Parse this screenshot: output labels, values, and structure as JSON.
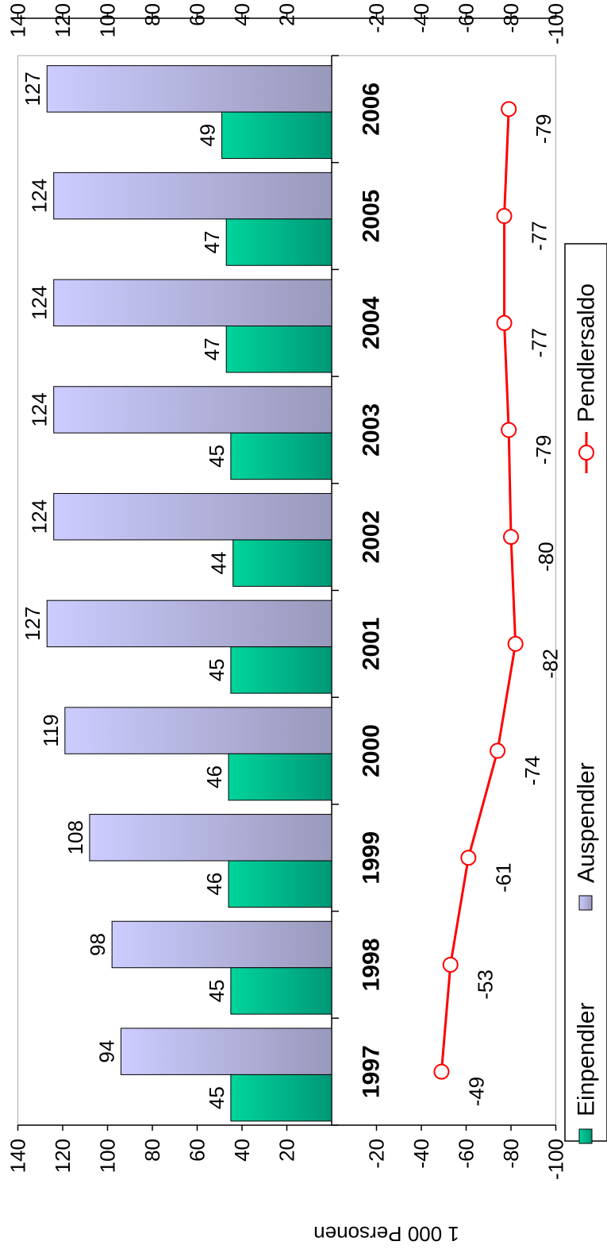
{
  "chart_data": {
    "type": "bar",
    "orientation": "rotated-90-clockwise",
    "categories": [
      "1997",
      "1998",
      "1999",
      "2000",
      "2001",
      "2002",
      "2003",
      "2004",
      "2005",
      "2006"
    ],
    "series": [
      {
        "name": "Einpendler",
        "kind": "bar",
        "color": "#00c896",
        "values": [
          45,
          45,
          46,
          46,
          45,
          44,
          45,
          47,
          47,
          49
        ]
      },
      {
        "name": "Auspendler",
        "kind": "bar",
        "color": "#c8c8ff",
        "values": [
          94,
          98,
          108,
          119,
          127,
          124,
          124,
          124,
          124,
          127
        ]
      },
      {
        "name": "Pendlersaldo",
        "kind": "line",
        "color": "#ff0000",
        "values": [
          -49,
          -53,
          -61,
          -74,
          -82,
          -80,
          -79,
          -77,
          -77,
          -79
        ]
      }
    ],
    "ylabel": "1 000 Personen",
    "ylim": [
      -100,
      140
    ],
    "yticks": [
      "140",
      "120",
      "100",
      "80",
      "60",
      "40",
      "20",
      "-20",
      "-40",
      "-60",
      "-80",
      "-100"
    ],
    "grid": false,
    "legend_position": "bottom"
  },
  "legend": {
    "einpendler": "Einpendler",
    "auspendler": "Auspendler",
    "pendlersaldo": "Pendlersaldo"
  }
}
